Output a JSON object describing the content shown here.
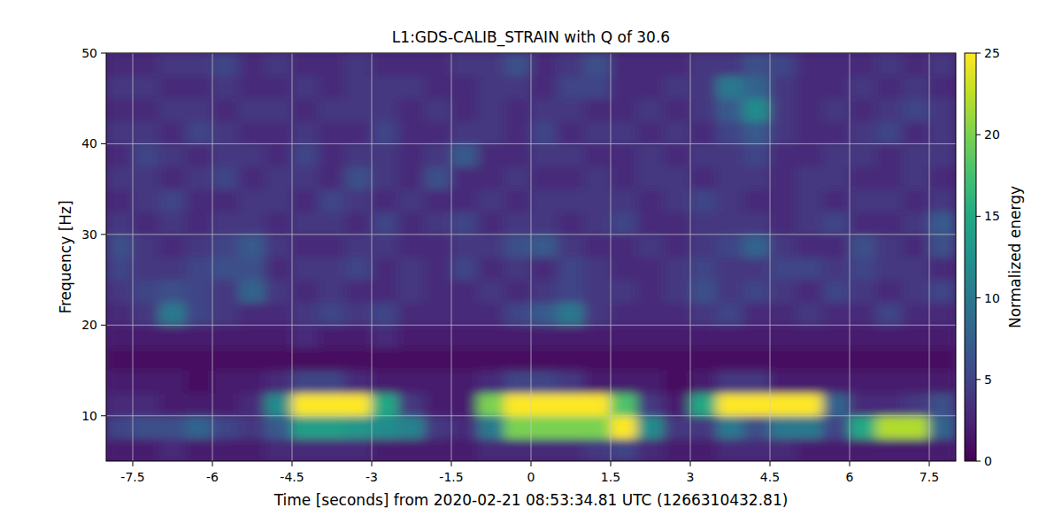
{
  "chart_data": {
    "type": "heatmap",
    "title": "L1:GDS-CALIB_STRAIN with Q of 30.6",
    "x_label": "Time [seconds] from 2020-02-21 08:53:34.81 UTC (1266310432.81)",
    "y_label": "Frequency [Hz]",
    "xlim": [
      -8,
      8
    ],
    "ylim": [
      5,
      50
    ],
    "xticks": [
      -7.5,
      -6,
      -4.5,
      -3,
      -1.5,
      0,
      1.5,
      3,
      4.5,
      6,
      7.5
    ],
    "yticks": [
      10,
      20,
      30,
      40,
      50
    ],
    "grid": true,
    "x": [
      -7.75,
      -7.25,
      -6.75,
      -6.25,
      -5.75,
      -5.25,
      -4.75,
      -4.25,
      -3.75,
      -3.25,
      -2.75,
      -2.25,
      -1.75,
      -1.25,
      -0.75,
      -0.25,
      0.25,
      0.75,
      1.25,
      1.75,
      2.25,
      2.75,
      3.25,
      3.75,
      4.25,
      4.75,
      5.25,
      5.75,
      6.25,
      6.75,
      7.25,
      7.75
    ],
    "y": [
      6.25,
      8.75,
      11.25,
      13.75,
      16.25,
      18.75,
      21.25,
      23.75,
      26.25,
      28.75,
      31.25,
      33.75,
      36.25,
      38.75,
      41.25,
      43.75,
      46.25,
      48.75
    ],
    "values": [
      [
        2,
        2,
        3,
        2,
        2,
        2,
        3,
        3,
        3,
        3,
        2,
        2,
        2,
        2,
        3,
        3,
        3,
        3,
        4,
        5,
        3,
        2,
        2,
        3,
        3,
        3,
        2,
        2,
        2,
        2,
        2,
        2
      ],
      [
        5,
        6,
        6,
        8,
        5,
        4,
        7,
        14,
        14,
        13,
        12,
        11,
        4,
        3,
        10,
        20,
        20,
        20,
        20,
        25,
        12,
        4,
        4,
        10,
        6,
        10,
        10,
        5,
        15,
        22,
        22,
        8
      ],
      [
        3,
        3,
        2,
        2,
        2,
        3,
        12,
        25,
        25,
        25,
        15,
        4,
        2,
        2,
        20,
        25,
        25,
        25,
        25,
        18,
        4,
        2,
        15,
        25,
        25,
        25,
        25,
        8,
        3,
        3,
        4,
        6
      ],
      [
        2,
        2,
        2,
        1,
        2,
        2,
        3,
        5,
        5,
        3,
        2,
        2,
        2,
        2,
        3,
        5,
        5,
        4,
        2,
        2,
        2,
        1,
        2,
        4,
        4,
        2,
        2,
        2,
        2,
        2,
        2,
        2
      ],
      [
        1,
        1,
        1,
        1,
        1,
        1,
        1,
        1,
        1,
        1,
        1,
        1,
        1,
        1,
        1,
        1,
        1,
        1,
        1,
        1,
        1,
        1,
        1,
        1,
        1,
        1,
        1,
        1,
        1,
        1,
        1,
        1
      ],
      [
        2,
        2,
        2,
        2,
        2,
        2,
        2,
        3,
        2,
        2,
        3,
        2,
        2,
        2,
        2,
        2,
        2,
        2,
        2,
        2,
        2,
        2,
        2,
        2,
        2,
        2,
        2,
        2,
        2,
        2,
        2,
        2
      ],
      [
        3,
        4,
        10,
        5,
        4,
        3,
        3,
        4,
        5,
        4,
        5,
        3,
        3,
        3,
        3,
        5,
        7,
        10,
        4,
        3,
        3,
        3,
        4,
        5,
        3,
        3,
        4,
        3,
        3,
        5,
        3,
        3
      ],
      [
        4,
        5,
        6,
        5,
        4,
        8,
        4,
        3,
        4,
        3,
        3,
        4,
        3,
        3,
        4,
        3,
        4,
        5,
        4,
        4,
        3,
        4,
        6,
        4,
        5,
        4,
        3,
        5,
        4,
        3,
        4,
        5
      ],
      [
        5,
        4,
        4,
        5,
        6,
        6,
        3,
        4,
        4,
        5,
        3,
        4,
        3,
        5,
        3,
        4,
        3,
        5,
        4,
        3,
        3,
        4,
        5,
        4,
        4,
        5,
        5,
        4,
        5,
        4,
        4,
        3
      ],
      [
        6,
        4,
        3,
        4,
        5,
        7,
        4,
        3,
        3,
        4,
        4,
        3,
        3,
        4,
        4,
        6,
        7,
        4,
        3,
        3,
        4,
        3,
        4,
        5,
        8,
        4,
        3,
        3,
        6,
        4,
        3,
        6
      ],
      [
        4,
        3,
        4,
        3,
        4,
        4,
        3,
        4,
        4,
        3,
        5,
        3,
        4,
        5,
        3,
        4,
        4,
        3,
        4,
        5,
        3,
        3,
        4,
        4,
        4,
        3,
        4,
        5,
        3,
        3,
        4,
        7
      ],
      [
        3,
        4,
        5,
        3,
        3,
        4,
        4,
        3,
        5,
        4,
        3,
        4,
        3,
        3,
        4,
        3,
        4,
        4,
        4,
        4,
        3,
        4,
        5,
        4,
        3,
        3,
        4,
        3,
        4,
        4,
        3,
        4
      ],
      [
        4,
        4,
        3,
        4,
        5,
        3,
        4,
        4,
        3,
        6,
        4,
        3,
        6,
        3,
        3,
        4,
        3,
        3,
        4,
        3,
        4,
        4,
        3,
        4,
        4,
        3,
        4,
        4,
        3,
        3,
        4,
        3
      ],
      [
        3,
        5,
        4,
        3,
        4,
        4,
        3,
        5,
        3,
        4,
        4,
        3,
        4,
        7,
        3,
        3,
        4,
        4,
        3,
        3,
        4,
        3,
        4,
        4,
        5,
        3,
        3,
        4,
        4,
        3,
        4,
        4
      ],
      [
        4,
        4,
        3,
        5,
        4,
        3,
        3,
        4,
        3,
        3,
        5,
        3,
        3,
        4,
        4,
        3,
        5,
        3,
        4,
        4,
        3,
        4,
        3,
        5,
        7,
        4,
        3,
        3,
        4,
        5,
        3,
        4
      ],
      [
        3,
        3,
        4,
        4,
        3,
        4,
        4,
        3,
        4,
        4,
        4,
        3,
        4,
        3,
        4,
        3,
        4,
        4,
        3,
        3,
        4,
        3,
        4,
        7,
        12,
        4,
        3,
        4,
        3,
        4,
        5,
        4
      ],
      [
        4,
        4,
        3,
        3,
        4,
        3,
        3,
        4,
        3,
        4,
        4,
        4,
        3,
        3,
        4,
        4,
        3,
        5,
        5,
        3,
        3,
        4,
        4,
        10,
        8,
        4,
        3,
        3,
        4,
        3,
        4,
        3
      ],
      [
        3,
        3,
        4,
        4,
        5,
        3,
        4,
        3,
        3,
        4,
        3,
        3,
        3,
        4,
        4,
        6,
        3,
        4,
        6,
        3,
        3,
        3,
        4,
        4,
        6,
        5,
        3,
        3,
        3,
        4,
        3,
        4
      ]
    ],
    "colorbar_label": "Normalized energy",
    "colorbar_lim": [
      0,
      25
    ],
    "colorbar_ticks": [
      0,
      5,
      10,
      15,
      20,
      25
    ]
  }
}
